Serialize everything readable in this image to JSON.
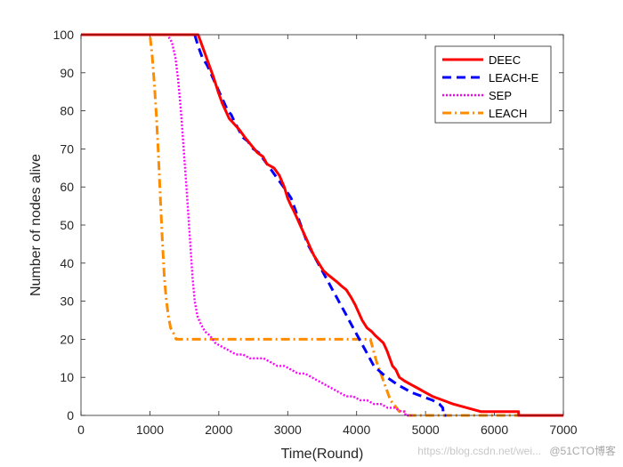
{
  "chart_data": {
    "type": "line",
    "title": "",
    "xlabel": "Time(Round)",
    "ylabel": "Number of nodes alive",
    "xlim": [
      0,
      7000
    ],
    "ylim": [
      0,
      100
    ],
    "xticks": [
      "0",
      "1000",
      "2000",
      "3000",
      "4000",
      "5000",
      "6000",
      "7000"
    ],
    "yticks": [
      "0",
      "10",
      "20",
      "30",
      "40",
      "50",
      "60",
      "70",
      "80",
      "90",
      "100"
    ],
    "legend_position": "top-right",
    "series": [
      {
        "name": "DEEC",
        "color": "#ff0000",
        "style": "solid",
        "x": [
          0,
          1700,
          1760,
          1800,
          1860,
          1920,
          1990,
          2050,
          2100,
          2150,
          2200,
          2300,
          2380,
          2470,
          2560,
          2640,
          2700,
          2800,
          2880,
          2950,
          3000,
          3050,
          3080,
          3130,
          3180,
          3230,
          3280,
          3330,
          3380,
          3450,
          3520,
          3580,
          3650,
          3720,
          3780,
          3850,
          3920,
          3980,
          4030,
          4080,
          4150,
          4220,
          4270,
          4330,
          4390,
          4440,
          4480,
          4520,
          4570,
          4620,
          4700,
          4800,
          4900,
          5000,
          5100,
          5250,
          5400,
          5600,
          5800,
          6000,
          6300,
          6350,
          6350,
          7000
        ],
        "y": [
          100,
          100,
          97,
          95,
          92,
          89,
          85,
          82,
          80,
          78,
          77,
          75,
          73,
          71,
          69,
          68,
          66,
          65,
          63,
          60,
          57,
          55,
          54,
          52,
          50,
          48,
          46,
          44,
          42,
          40,
          38,
          37,
          36,
          35,
          34,
          33,
          31,
          29,
          27,
          25,
          23,
          22,
          21,
          20,
          19,
          17,
          15,
          13,
          12,
          10,
          9,
          8,
          7,
          6,
          5,
          4,
          3,
          2,
          1,
          1,
          1,
          1,
          0,
          0
        ]
      },
      {
        "name": "LEACH-E",
        "color": "#0000ff",
        "style": "dashed",
        "x": [
          0,
          1650,
          1700,
          1760,
          1830,
          1880,
          1930,
          1980,
          2030,
          2080,
          2130,
          2180,
          2230,
          2290,
          2350,
          2420,
          2500,
          2580,
          2660,
          2740,
          2820,
          2900,
          2980,
          3050,
          3110,
          3170,
          3230,
          3290,
          3350,
          3410,
          3470,
          3530,
          3590,
          3650,
          3710,
          3770,
          3830,
          3890,
          3950,
          4010,
          4070,
          4130,
          4190,
          4250,
          4310,
          4370,
          4440,
          4520,
          4600,
          4700,
          4800,
          4950,
          5100,
          5200,
          5250,
          5260,
          5300
        ],
        "y": [
          100,
          100,
          97,
          94,
          92,
          90,
          88,
          86,
          84,
          82,
          80,
          79,
          77,
          75,
          73,
          72,
          70,
          69,
          67,
          65,
          63,
          61,
          59,
          57,
          54,
          51,
          48,
          45,
          43,
          41,
          39,
          37,
          35,
          33,
          31,
          29,
          27,
          25,
          23,
          21,
          19,
          17,
          15,
          13,
          12,
          11,
          10,
          9,
          8,
          7,
          6,
          5,
          4,
          3,
          2,
          0,
          0
        ]
      },
      {
        "name": "SEP",
        "color": "#ff00ff",
        "style": "dotted",
        "x": [
          0,
          1250,
          1320,
          1370,
          1410,
          1450,
          1490,
          1530,
          1560,
          1590,
          1620,
          1650,
          1690,
          1740,
          1800,
          1870,
          1950,
          2050,
          2150,
          2250,
          2350,
          2450,
          2550,
          2650,
          2750,
          2850,
          2950,
          3050,
          3150,
          3250,
          3350,
          3450,
          3550,
          3650,
          3750,
          3850,
          3950,
          4050,
          4150,
          4250,
          4350,
          4450,
          4550,
          4650,
          4700,
          4710,
          4800
        ],
        "y": [
          100,
          100,
          98,
          94,
          88,
          80,
          70,
          60,
          52,
          44,
          36,
          30,
          26,
          24,
          22,
          21,
          19,
          18,
          17,
          16,
          16,
          15,
          15,
          15,
          14,
          13,
          13,
          12,
          11,
          11,
          10,
          9,
          8,
          7,
          6,
          5,
          5,
          4,
          4,
          3,
          3,
          2,
          2,
          1,
          1,
          0,
          0
        ]
      },
      {
        "name": "LEACH",
        "color": "#ff8c00",
        "style": "dashdot",
        "x": [
          0,
          1000,
          1030,
          1060,
          1090,
          1120,
          1150,
          1180,
          1210,
          1240,
          1270,
          1300,
          1330,
          1360,
          1380,
          1400,
          4200,
          4230,
          4260,
          4290,
          4330,
          4370,
          4410,
          4450,
          4490,
          4530,
          4580,
          4620,
          4660,
          4700,
          4750,
          4800,
          7000
        ],
        "y": [
          100,
          100,
          95,
          88,
          80,
          70,
          58,
          46,
          36,
          30,
          26,
          23,
          22,
          21,
          20,
          20,
          20,
          18,
          16,
          14,
          12,
          10,
          8,
          6,
          4,
          3,
          2,
          1,
          1,
          1,
          0,
          0,
          0
        ]
      }
    ]
  },
  "watermark": {
    "text": "https://blog.csdn.net/wei...",
    "brand": "@51CTO博客"
  }
}
